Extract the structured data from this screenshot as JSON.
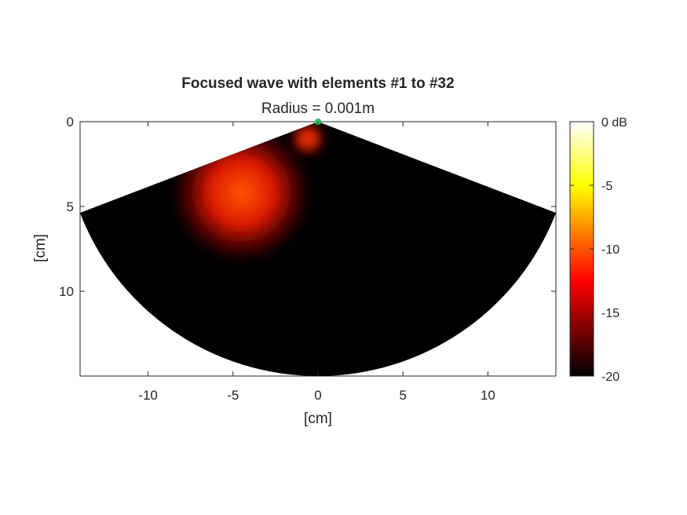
{
  "chart_data": {
    "type": "heatmap",
    "title": "Focused wave with elements #1 to #32",
    "subtitle": "Radius = 0.001m",
    "xlabel": "[cm]",
    "ylabel": "[cm]",
    "xlim": [
      -14,
      14
    ],
    "ylim": [
      0,
      15
    ],
    "y_reversed": true,
    "x_ticks": [
      "-10",
      "-5",
      "0",
      "5",
      "10"
    ],
    "x_tick_values": [
      -10,
      -5,
      0,
      5,
      10
    ],
    "y_ticks": [
      "0",
      "5",
      "10"
    ],
    "y_tick_values": [
      0,
      5,
      10
    ],
    "sector": {
      "apex": [
        0,
        0
      ],
      "radius": 15,
      "half_angle_deg": 69
    },
    "intensity_blobs": [
      {
        "center": [
          -4.5,
          4.2
        ],
        "radius": 4.3,
        "peak_db": -10
      },
      {
        "center": [
          -0.6,
          1.0
        ],
        "radius": 1.1,
        "peak_db": -8.5
      }
    ],
    "source_marker": {
      "x": 0,
      "y": 0,
      "color": "#22c55e"
    },
    "colorbar": {
      "colormap": "hot",
      "range_db": [
        -20,
        0
      ],
      "ticks": [
        "0 dB",
        "-5",
        "-10",
        "-15",
        "-20"
      ],
      "tick_values": [
        0,
        -5,
        -10,
        -15,
        -20
      ]
    },
    "grid": false
  }
}
